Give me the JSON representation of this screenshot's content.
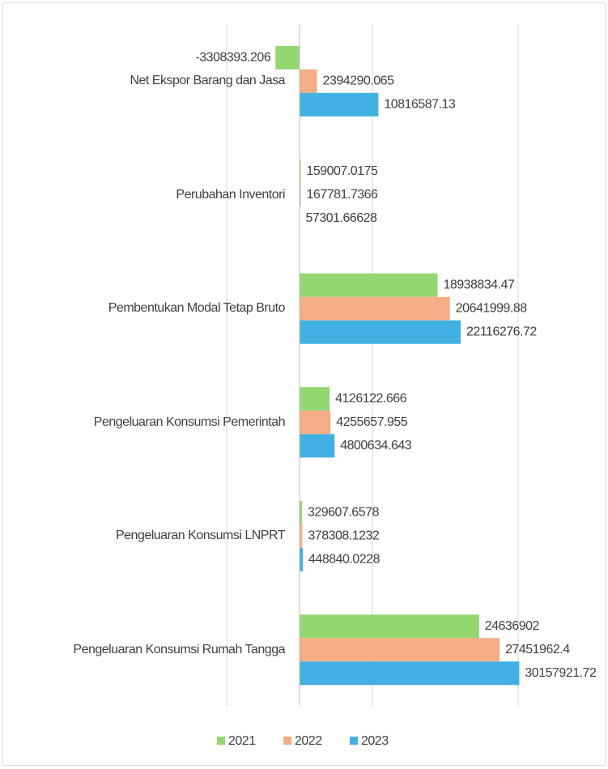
{
  "chart_data": {
    "type": "bar",
    "orientation": "horizontal",
    "categories": [
      "Net Ekspor Barang dan Jasa",
      "Perubahan Inventori",
      "Pembentukan Modal Tetap Bruto",
      "Pengeluaran Konsumsi Pemerintah",
      "Pengeluaran Konsumsi LNPRT",
      "Pengeluaran Konsumsi Rumah Tangga"
    ],
    "series": [
      {
        "name": "2021",
        "color": "#92d76f",
        "values": [
          -3308393.206,
          159007.0175,
          18938834.47,
          4126122.666,
          329607.6578,
          24636902
        ]
      },
      {
        "name": "2022",
        "color": "#f4ad84",
        "values": [
          2394290.065,
          167781.7366,
          20641999.88,
          4255657.955,
          378308.1232,
          27451962.4
        ]
      },
      {
        "name": "2023",
        "color": "#42b0e2",
        "values": [
          10816587.13,
          57301.66628,
          22116276.72,
          4800634.643,
          448840.0228,
          30157921.72
        ]
      }
    ],
    "xlim": [
      -10000000,
      30000000
    ],
    "xticks": [
      -10000000,
      10000000,
      30000000
    ],
    "grid": true,
    "legend": "bottom"
  }
}
